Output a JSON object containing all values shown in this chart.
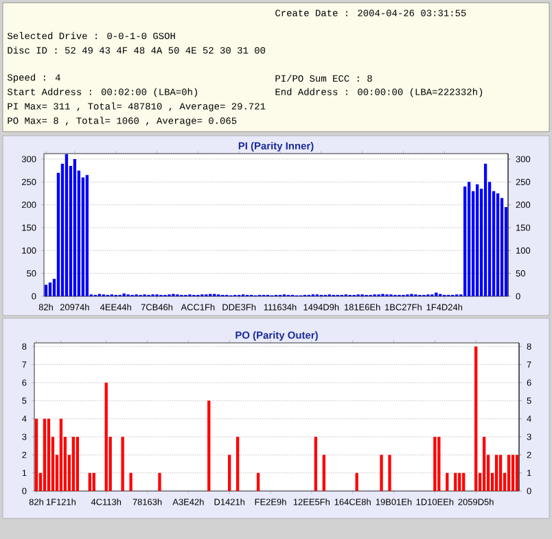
{
  "chart_data": [
    {
      "type": "bar",
      "title": "PI (Parity Inner)",
      "categories": [
        "82h",
        null,
        null,
        null,
        null,
        null,
        null,
        "20974h",
        null,
        null,
        null,
        null,
        null,
        null,
        null,
        null,
        null,
        "4EE44h",
        null,
        null,
        null,
        null,
        null,
        null,
        null,
        null,
        null,
        "7CB46h",
        null,
        null,
        null,
        null,
        null,
        null,
        null,
        null,
        null,
        "ACC1Fh",
        null,
        null,
        null,
        null,
        null,
        null,
        null,
        null,
        null,
        "DDE3Fh",
        null,
        null,
        null,
        null,
        null,
        null,
        null,
        null,
        null,
        "111634h",
        null,
        null,
        null,
        null,
        null,
        null,
        null,
        null,
        null,
        "1494D9h",
        null,
        null,
        null,
        null,
        null,
        null,
        null,
        null,
        null,
        "181E6Eh",
        null,
        null,
        null,
        null,
        null,
        null,
        null,
        null,
        null,
        "1BC27Fh",
        null,
        null,
        null,
        null,
        null,
        null,
        null,
        null,
        null,
        "1F4D24h",
        null,
        null,
        null,
        null,
        null,
        null,
        null,
        null,
        null,
        null,
        null,
        null,
        null,
        null,
        null
      ],
      "values": [
        25,
        30,
        38,
        270,
        290,
        311,
        285,
        300,
        275,
        260,
        265,
        4,
        3,
        5,
        4,
        3,
        4,
        3,
        3,
        6,
        4,
        3,
        4,
        3,
        4,
        3,
        4,
        4,
        3,
        3,
        4,
        5,
        4,
        3,
        3,
        4,
        3,
        3,
        4,
        4,
        5,
        5,
        4,
        3,
        3,
        2,
        3,
        3,
        4,
        3,
        3,
        2,
        3,
        3,
        3,
        2,
        3,
        3,
        4,
        3,
        3,
        2,
        2,
        3,
        3,
        4,
        4,
        3,
        3,
        4,
        3,
        3,
        3,
        4,
        3,
        3,
        4,
        4,
        3,
        3,
        4,
        4,
        5,
        4,
        4,
        3,
        3,
        3,
        4,
        5,
        4,
        3,
        3,
        4,
        4,
        8,
        5,
        3,
        3,
        3,
        4,
        4,
        240,
        250,
        230,
        245,
        235,
        290,
        250,
        230,
        225,
        215,
        195
      ],
      "color": "#0000ff",
      "ylim": [
        0,
        312
      ],
      "yticks": [
        0,
        50,
        100,
        150,
        200,
        250,
        300
      ],
      "y2lim": [
        0,
        312
      ],
      "y2ticks": [
        0,
        50,
        100,
        150,
        200,
        250,
        300
      ],
      "grid": "y",
      "annotations": [
        "Create Date : 2004-04-26 03:31:55",
        "Selected Drive : 0-0-1-0 GSOH",
        "Disc ID : 52 49 43 4F 48 4A 50 4E 52 30 31 00",
        "Speed : 4",
        "PI/PO Sum ECC : 8",
        "Start Address : 00:02:00 (LBA=0h)",
        "End Address : 00:00:00 (LBA=222332h)",
        "PI Max= 311 , Total= 487810 , Average= 29.721",
        "PO Max= 8 , Total= 1060 , Average= 0.065"
      ]
    },
    {
      "type": "bar",
      "title": "PO (Parity Outer)",
      "categories": [
        "82h",
        null,
        null,
        null,
        null,
        null,
        "1F121h",
        null,
        null,
        null,
        null,
        null,
        null,
        null,
        null,
        null,
        null,
        "4C113h",
        null,
        null,
        null,
        null,
        null,
        null,
        null,
        null,
        null,
        "78163h",
        null,
        null,
        null,
        null,
        null,
        null,
        null,
        null,
        null,
        "A3E42h",
        null,
        null,
        null,
        null,
        null,
        null,
        null,
        null,
        null,
        "D1421h",
        null,
        null,
        null,
        null,
        null,
        null,
        null,
        null,
        null,
        "FE2E9h",
        null,
        null,
        null,
        null,
        null,
        null,
        null,
        null,
        null,
        "12EE5Fh",
        null,
        null,
        null,
        null,
        null,
        null,
        null,
        null,
        null,
        "164CE8h",
        null,
        null,
        null,
        null,
        null,
        null,
        null,
        null,
        null,
        "19B01Eh",
        null,
        null,
        null,
        null,
        null,
        null,
        null,
        null,
        null,
        "1D10EEh",
        null,
        null,
        null,
        null,
        null,
        null,
        null,
        null,
        null,
        "2059D5h",
        null,
        null,
        null,
        null,
        null,
        null,
        null,
        null,
        null,
        null
      ],
      "values": [
        4,
        1,
        4,
        4,
        3,
        2,
        4,
        3,
        2,
        3,
        3,
        0,
        0,
        1,
        1,
        0,
        0,
        6,
        3,
        0,
        0,
        3,
        0,
        1,
        0,
        0,
        0,
        0,
        0,
        0,
        1,
        0,
        0,
        0,
        0,
        0,
        0,
        0,
        0,
        0,
        0,
        0,
        5,
        0,
        0,
        0,
        0,
        2,
        0,
        3,
        0,
        0,
        0,
        0,
        1,
        0,
        0,
        0,
        0,
        0,
        0,
        0,
        0,
        0,
        0,
        0,
        0,
        0,
        3,
        0,
        2,
        0,
        0,
        0,
        0,
        0,
        0,
        0,
        1,
        0,
        0,
        0,
        0,
        0,
        2,
        0,
        2,
        0,
        0,
        0,
        0,
        0,
        0,
        0,
        0,
        0,
        0,
        3,
        3,
        0,
        1,
        0,
        1,
        1,
        1,
        0,
        0,
        8,
        1,
        3,
        2,
        1,
        2,
        2,
        1,
        2,
        2,
        2
      ],
      "color": "#ff0000",
      "ylim": [
        0,
        8.2
      ],
      "yticks": [
        0,
        1,
        2,
        3,
        4,
        5,
        6,
        7,
        8
      ],
      "y2lim": [
        0,
        8.2
      ],
      "y2ticks": [
        0,
        1,
        2,
        3,
        4,
        5,
        6,
        7,
        8
      ],
      "grid": "y"
    }
  ]
}
